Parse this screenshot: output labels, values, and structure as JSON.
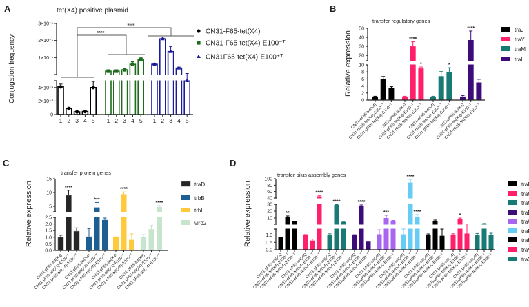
{
  "chart_data": [
    {
      "panel": "A",
      "type": "bar",
      "title": "tet(X4) positive plasmid",
      "ylabel": "Conjugation frequency",
      "yticks": [
        {
          "v": 0,
          "label": "0"
        },
        {
          "v": 0.002,
          "label": "2×10⁻³"
        },
        {
          "v": 0.004,
          "label": "4×10⁻³"
        },
        {
          "v": 0.1,
          "label": "1×10⁻¹"
        },
        {
          "v": 0.2,
          "label": "2×10⁻¹"
        },
        {
          "v": 0.3,
          "label": "3×10⁻¹"
        }
      ],
      "categories": [
        "1",
        "2",
        "3",
        "4",
        "5"
      ],
      "series": [
        {
          "name": "CN31-F65-tet(X4)",
          "color": "#000000",
          "marker": "circle",
          "values": [
            0.0041,
            0.0009,
            0.0004,
            0.00045,
            0.004
          ],
          "errors": [
            0.0004,
            0.0001,
            5e-05,
            5e-05,
            0.0009
          ]
        },
        {
          "name": "CN31-F65-tet(X4)-E100⁻ᵀ",
          "color": "#1e6b1e",
          "marker": "square",
          "values": [
            0.02,
            0.02,
            0.028,
            0.06,
            0.09
          ],
          "errors": [
            0.002,
            0.002,
            0.004,
            0.015,
            0.003
          ]
        },
        {
          "name": "CN31F65-tet(X4)-E100⁺ᵀ",
          "color": "#1c1c9a",
          "marker": "triangle",
          "values": [
            0.06,
            0.21,
            0.135,
            0.038,
            0.005
          ],
          "errors": [
            0.003,
            0.004,
            0.03,
            0.006,
            0.001
          ]
        }
      ],
      "significance": [
        "****",
        "****"
      ]
    },
    {
      "panel": "B",
      "type": "bar",
      "title": "transfer regulatory genes",
      "ylabel": "Relative expression",
      "yticks": [
        {
          "v": 0,
          "label": "0"
        },
        {
          "v": 2,
          "label": "2"
        },
        {
          "v": 4,
          "label": "4"
        },
        {
          "v": 6,
          "label": "6"
        },
        {
          "v": 8,
          "label": "8"
        },
        {
          "v": 10,
          "label": "10"
        },
        {
          "v": 20,
          "label": "20"
        },
        {
          "v": 30,
          "label": "30"
        },
        {
          "v": 40,
          "label": "40"
        },
        {
          "v": 50,
          "label": "50"
        }
      ],
      "categories": [
        "CN31-pF65-tet(X4)",
        "CN31-pF65-tet(X4)-E100⁻ᵀ",
        "CN31-pF65-tet(X4)-E100⁺ᵀ"
      ],
      "series": [
        {
          "name": "traJ",
          "color": "#000000",
          "values": [
            1,
            6,
            3.5
          ],
          "errors": [
            0.1,
            0.7,
            0.3
          ],
          "sig": [
            "",
            "",
            ""
          ]
        },
        {
          "name": "traY",
          "color": "#ff1f6b",
          "values": [
            1,
            30,
            9
          ],
          "errors": [
            0.1,
            5,
            0.4
          ],
          "sig": [
            "",
            "****",
            "*"
          ]
        },
        {
          "name": "traM",
          "color": "#177a74",
          "values": [
            1,
            6.8,
            8
          ],
          "errors": [
            0.1,
            1.3,
            1.2
          ],
          "sig": [
            "",
            "",
            "*"
          ]
        },
        {
          "name": "traI",
          "color": "#3d0b7a",
          "values": [
            1,
            37,
            5
          ],
          "errors": [
            0.3,
            10,
            0.9
          ],
          "sig": [
            "",
            "****",
            ""
          ]
        }
      ]
    },
    {
      "panel": "C",
      "type": "bar",
      "title": "transfer protein genes",
      "ylabel": "Relative expression",
      "yticks": [
        {
          "v": 0,
          "label": "0.0"
        },
        {
          "v": 0.5,
          "label": "0.5"
        },
        {
          "v": 1,
          "label": "1.0"
        },
        {
          "v": 1.5,
          "label": "1.5"
        },
        {
          "v": 2,
          "label": "2.0"
        },
        {
          "v": 2.5,
          "label": "2.5"
        },
        {
          "v": 5,
          "label": "5"
        },
        {
          "v": 10,
          "label": "10"
        },
        {
          "v": 15,
          "label": "15"
        }
      ],
      "categories": [
        "CN31-pF65-tet(X4)",
        "CN31-pF65-tet(X4)-E100⁻ᵀ",
        "CN31-pF65-tet(X4)-E100⁺ᵀ"
      ],
      "series": [
        {
          "name": "traD",
          "color": "#262626",
          "values": [
            1,
            9,
            1.45
          ],
          "errors": [
            0.15,
            1.8,
            0.25
          ],
          "sig": [
            "",
            "****",
            ""
          ]
        },
        {
          "name": "trbB",
          "color": "#1d5e93",
          "values": [
            1.05,
            4.6,
            2.3
          ],
          "errors": [
            0.6,
            1.8,
            0.15
          ],
          "sig": [
            "",
            "***",
            ""
          ]
        },
        {
          "name": "trbI",
          "color": "#ffc93c",
          "values": [
            1,
            9.4,
            0.8
          ],
          "errors": [
            0.03,
            0.8,
            0.45
          ],
          "sig": [
            "",
            "****",
            ""
          ]
        },
        {
          "name": "vird2",
          "color": "#c6e5cc",
          "values": [
            1,
            1.6,
            4.8
          ],
          "errors": [
            0.2,
            0.3,
            0.5
          ],
          "sig": [
            "",
            "",
            "****"
          ]
        }
      ]
    },
    {
      "panel": "D",
      "type": "bar",
      "title": "transfer pilus assembly genes",
      "ylabel": "Relative expression",
      "yticks": [
        {
          "v": 0,
          "label": "0.0"
        },
        {
          "v": 0.5,
          "label": "0.5"
        },
        {
          "v": 1,
          "label": "1.0"
        },
        {
          "v": 10,
          "label": "10"
        },
        {
          "v": 20,
          "label": "20"
        },
        {
          "v": 30,
          "label": "30"
        },
        {
          "v": 40,
          "label": "40"
        },
        {
          "v": 60,
          "label": "60"
        },
        {
          "v": 80,
          "label": "80"
        },
        {
          "v": 100,
          "label": "100"
        }
      ],
      "categories": [
        "CN31-pF65-tet(X4)",
        "CN31-pF65-tet(X4)-E100⁻ᵀ",
        "CN31-pF65-tet(X4)-E100⁺ᵀ"
      ],
      "series": [
        {
          "name": "traB",
          "color": "#000000",
          "values": [
            0.85,
            11,
            5
          ],
          "errors": [
            0,
            2,
            0.5
          ],
          "sig": [
            "",
            "**",
            ""
          ]
        },
        {
          "name": "traC",
          "color": "#ff1f6b",
          "values": [
            1,
            0.62,
            45
          ],
          "errors": [
            0.03,
            0.1,
            2
          ],
          "sig": [
            "",
            "",
            "****"
          ]
        },
        {
          "name": "traG",
          "color": "#177a74",
          "values": [
            1,
            29,
            4
          ],
          "errors": [
            0.08,
            0.5,
            0.3
          ],
          "sig": [
            "",
            "****",
            ""
          ]
        },
        {
          "name": "traE",
          "color": "#3d0b7a",
          "values": [
            1,
            27,
            0.55
          ],
          "errors": [
            0.02,
            2,
            0
          ],
          "sig": [
            "",
            "****",
            ""
          ]
        },
        {
          "name": "traW",
          "color": "#a866f0",
          "values": [
            1.05,
            10,
            6
          ],
          "errors": [
            0.3,
            4,
            0.5
          ],
          "sig": [
            "",
            "***",
            ""
          ]
        },
        {
          "name": "traP",
          "color": "#66ccf5",
          "values": [
            1.05,
            88,
            12
          ],
          "errors": [
            0.35,
            10,
            3
          ],
          "sig": [
            "",
            "****",
            "****"
          ]
        },
        {
          "name": "traH",
          "color": "#000000",
          "values": [
            1,
            6,
            0.95
          ],
          "errors": [
            0.07,
            1,
            0.45
          ],
          "sig": [
            "",
            "",
            ""
          ]
        },
        {
          "name": "traV",
          "color": "#ff1f6b",
          "values": [
            1,
            8,
            1.1
          ],
          "errors": [
            0.08,
            2,
            0.3
          ],
          "sig": [
            "",
            "*",
            ""
          ]
        },
        {
          "name": "traX",
          "color": "#177a74",
          "values": [
            1,
            2,
            1
          ],
          "errors": [
            0.1,
            0.1,
            0.12
          ],
          "sig": [
            "",
            "",
            ""
          ]
        }
      ]
    }
  ]
}
